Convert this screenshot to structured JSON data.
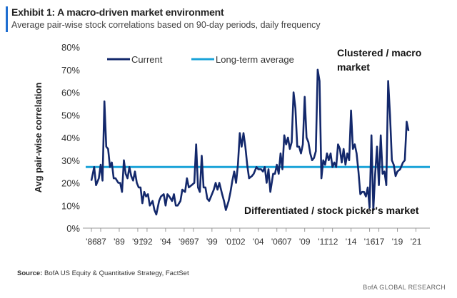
{
  "header": {
    "title": "Exhibit 1: A macro-driven market environment",
    "subtitle": "Average pair-wise stock correlations based on 90-day periods, daily frequency"
  },
  "footer": {
    "source_label": "Source:",
    "source_text": "BofA US Equity & Quantitative Strategy, FactSet",
    "brand": "BofA GLOBAL RESEARCH"
  },
  "colors": {
    "current": "#13286b",
    "average": "#1aa3d8",
    "accent": "#1f6fd1"
  },
  "chart_data": {
    "type": "line",
    "ylabel": "Avg pair-wise correlation",
    "ylim": [
      0,
      80
    ],
    "yticks": [
      "0%",
      "10%",
      "20%",
      "30%",
      "40%",
      "50%",
      "60%",
      "70%",
      "80%"
    ],
    "xlim": [
      1986,
      2022.5
    ],
    "xticks": [
      {
        "x": 1986,
        "label": "'86"
      },
      {
        "x": 1987,
        "label": "'87"
      },
      {
        "x": 1989,
        "label": "'89"
      },
      {
        "x": 1991,
        "label": "'91"
      },
      {
        "x": 1992,
        "label": "'92"
      },
      {
        "x": 1994,
        "label": "'94"
      },
      {
        "x": 1996,
        "label": "'96"
      },
      {
        "x": 1997,
        "label": "'97"
      },
      {
        "x": 1999,
        "label": "'99"
      },
      {
        "x": 2001,
        "label": "'01"
      },
      {
        "x": 2002,
        "label": "'02"
      },
      {
        "x": 2004,
        "label": "'04"
      },
      {
        "x": 2006,
        "label": "'06"
      },
      {
        "x": 2007,
        "label": "'07"
      },
      {
        "x": 2009,
        "label": "'09"
      },
      {
        "x": 2011,
        "label": "'11"
      },
      {
        "x": 2012,
        "label": "'12"
      },
      {
        "x": 2014,
        "label": "'14"
      },
      {
        "x": 2016,
        "label": "'16"
      },
      {
        "x": 2017,
        "label": "'17"
      },
      {
        "x": 2019,
        "label": "'19"
      },
      {
        "x": 2021,
        "label": "'21"
      }
    ],
    "legend": {
      "placement": "top-left",
      "entries": [
        "Current",
        "Long-term average"
      ]
    },
    "annotations": [
      {
        "text": "Clustered / macro",
        "placement": "top-right"
      },
      {
        "text": "market",
        "placement": "top-right"
      },
      {
        "text": "Differentiated / stock picker's market",
        "placement": "bottom-right"
      }
    ],
    "series": [
      {
        "name": "Current",
        "points": [
          [
            1986.0,
            21
          ],
          [
            1986.3,
            27
          ],
          [
            1986.5,
            19
          ],
          [
            1986.8,
            22
          ],
          [
            1987.0,
            28
          ],
          [
            1987.2,
            21
          ],
          [
            1987.4,
            56
          ],
          [
            1987.6,
            36
          ],
          [
            1987.8,
            35
          ],
          [
            1988.0,
            27
          ],
          [
            1988.2,
            29
          ],
          [
            1988.4,
            22
          ],
          [
            1988.6,
            22
          ],
          [
            1988.9,
            20
          ],
          [
            1989.1,
            20
          ],
          [
            1989.3,
            16
          ],
          [
            1989.5,
            30
          ],
          [
            1989.7,
            24
          ],
          [
            1989.9,
            22
          ],
          [
            1990.1,
            27
          ],
          [
            1990.3,
            23
          ],
          [
            1990.5,
            21
          ],
          [
            1990.7,
            25
          ],
          [
            1990.9,
            20
          ],
          [
            1991.1,
            18
          ],
          [
            1991.3,
            18
          ],
          [
            1991.5,
            11
          ],
          [
            1991.7,
            16
          ],
          [
            1991.9,
            14
          ],
          [
            1992.1,
            15
          ],
          [
            1992.3,
            10
          ],
          [
            1992.6,
            12
          ],
          [
            1992.8,
            8
          ],
          [
            1993.0,
            6
          ],
          [
            1993.3,
            12
          ],
          [
            1993.5,
            14
          ],
          [
            1993.8,
            15
          ],
          [
            1994.0,
            10
          ],
          [
            1994.2,
            15
          ],
          [
            1994.4,
            14
          ],
          [
            1994.7,
            12
          ],
          [
            1994.9,
            15
          ],
          [
            1995.1,
            10
          ],
          [
            1995.3,
            10
          ],
          [
            1995.6,
            12
          ],
          [
            1995.8,
            17
          ],
          [
            1996.1,
            16
          ],
          [
            1996.3,
            22
          ],
          [
            1996.5,
            18
          ],
          [
            1996.8,
            19
          ],
          [
            1997.1,
            20
          ],
          [
            1997.3,
            37
          ],
          [
            1997.5,
            18
          ],
          [
            1997.7,
            16
          ],
          [
            1997.9,
            32
          ],
          [
            1998.1,
            18
          ],
          [
            1998.3,
            18
          ],
          [
            1998.5,
            13
          ],
          [
            1998.7,
            12
          ],
          [
            1998.9,
            14
          ],
          [
            1999.2,
            17
          ],
          [
            1999.4,
            20
          ],
          [
            1999.6,
            17
          ],
          [
            1999.8,
            20
          ],
          [
            2000.1,
            15
          ],
          [
            2000.3,
            12
          ],
          [
            2000.5,
            8
          ],
          [
            2000.8,
            12
          ],
          [
            2001.0,
            16
          ],
          [
            2001.2,
            21
          ],
          [
            2001.4,
            25
          ],
          [
            2001.6,
            20
          ],
          [
            2001.8,
            28
          ],
          [
            2002.0,
            42
          ],
          [
            2002.2,
            36
          ],
          [
            2002.4,
            42
          ],
          [
            2002.6,
            36
          ],
          [
            2002.8,
            28
          ],
          [
            2003.0,
            22
          ],
          [
            2003.3,
            23
          ],
          [
            2003.5,
            24
          ],
          [
            2003.8,
            27
          ],
          [
            2004.0,
            26
          ],
          [
            2004.3,
            26
          ],
          [
            2004.5,
            25
          ],
          [
            2004.7,
            27
          ],
          [
            2004.9,
            20
          ],
          [
            2005.1,
            26
          ],
          [
            2005.3,
            16
          ],
          [
            2005.6,
            24
          ],
          [
            2005.8,
            24
          ],
          [
            2006.0,
            28
          ],
          [
            2006.2,
            24
          ],
          [
            2006.4,
            33
          ],
          [
            2006.6,
            26
          ],
          [
            2006.8,
            41
          ],
          [
            2007.0,
            37
          ],
          [
            2007.2,
            40
          ],
          [
            2007.4,
            35
          ],
          [
            2007.6,
            38
          ],
          [
            2007.8,
            60
          ],
          [
            2008.0,
            53
          ],
          [
            2008.2,
            36
          ],
          [
            2008.4,
            36
          ],
          [
            2008.6,
            33
          ],
          [
            2008.8,
            37
          ],
          [
            2009.0,
            58
          ],
          [
            2009.2,
            40
          ],
          [
            2009.4,
            38
          ],
          [
            2009.6,
            33
          ],
          [
            2009.8,
            30
          ],
          [
            2010.0,
            31
          ],
          [
            2010.2,
            34
          ],
          [
            2010.4,
            70
          ],
          [
            2010.6,
            65
          ],
          [
            2010.8,
            22
          ],
          [
            2011.0,
            30
          ],
          [
            2011.2,
            28
          ],
          [
            2011.4,
            33
          ],
          [
            2011.6,
            30
          ],
          [
            2011.8,
            33
          ],
          [
            2012.0,
            27
          ],
          [
            2012.2,
            29
          ],
          [
            2012.4,
            27
          ],
          [
            2012.6,
            37
          ],
          [
            2012.8,
            35
          ],
          [
            2013.0,
            29
          ],
          [
            2013.2,
            35
          ],
          [
            2013.4,
            28
          ],
          [
            2013.6,
            33
          ],
          [
            2013.8,
            30
          ],
          [
            2014.0,
            52
          ],
          [
            2014.2,
            35
          ],
          [
            2014.4,
            37
          ],
          [
            2014.6,
            33
          ],
          [
            2014.8,
            25
          ],
          [
            2015.0,
            15
          ],
          [
            2015.2,
            16
          ],
          [
            2015.4,
            16
          ],
          [
            2015.6,
            14
          ],
          [
            2015.8,
            18
          ],
          [
            2016.0,
            9
          ],
          [
            2016.2,
            41
          ],
          [
            2016.4,
            8
          ],
          [
            2016.6,
            24
          ],
          [
            2016.8,
            36
          ],
          [
            2017.0,
            19
          ],
          [
            2017.2,
            41
          ],
          [
            2017.4,
            24
          ],
          [
            2017.6,
            25
          ],
          [
            2017.8,
            19
          ],
          [
            2018.0,
            65
          ],
          [
            2018.2,
            50
          ],
          [
            2018.4,
            30
          ],
          [
            2018.6,
            28
          ],
          [
            2018.8,
            23
          ],
          [
            2019.0,
            25
          ],
          [
            2019.3,
            26
          ],
          [
            2019.6,
            29
          ],
          [
            2019.8,
            30
          ],
          [
            2020.0,
            47
          ],
          [
            2020.2,
            43
          ]
        ]
      },
      {
        "name": "Long-term average",
        "value": 27
      }
    ]
  }
}
